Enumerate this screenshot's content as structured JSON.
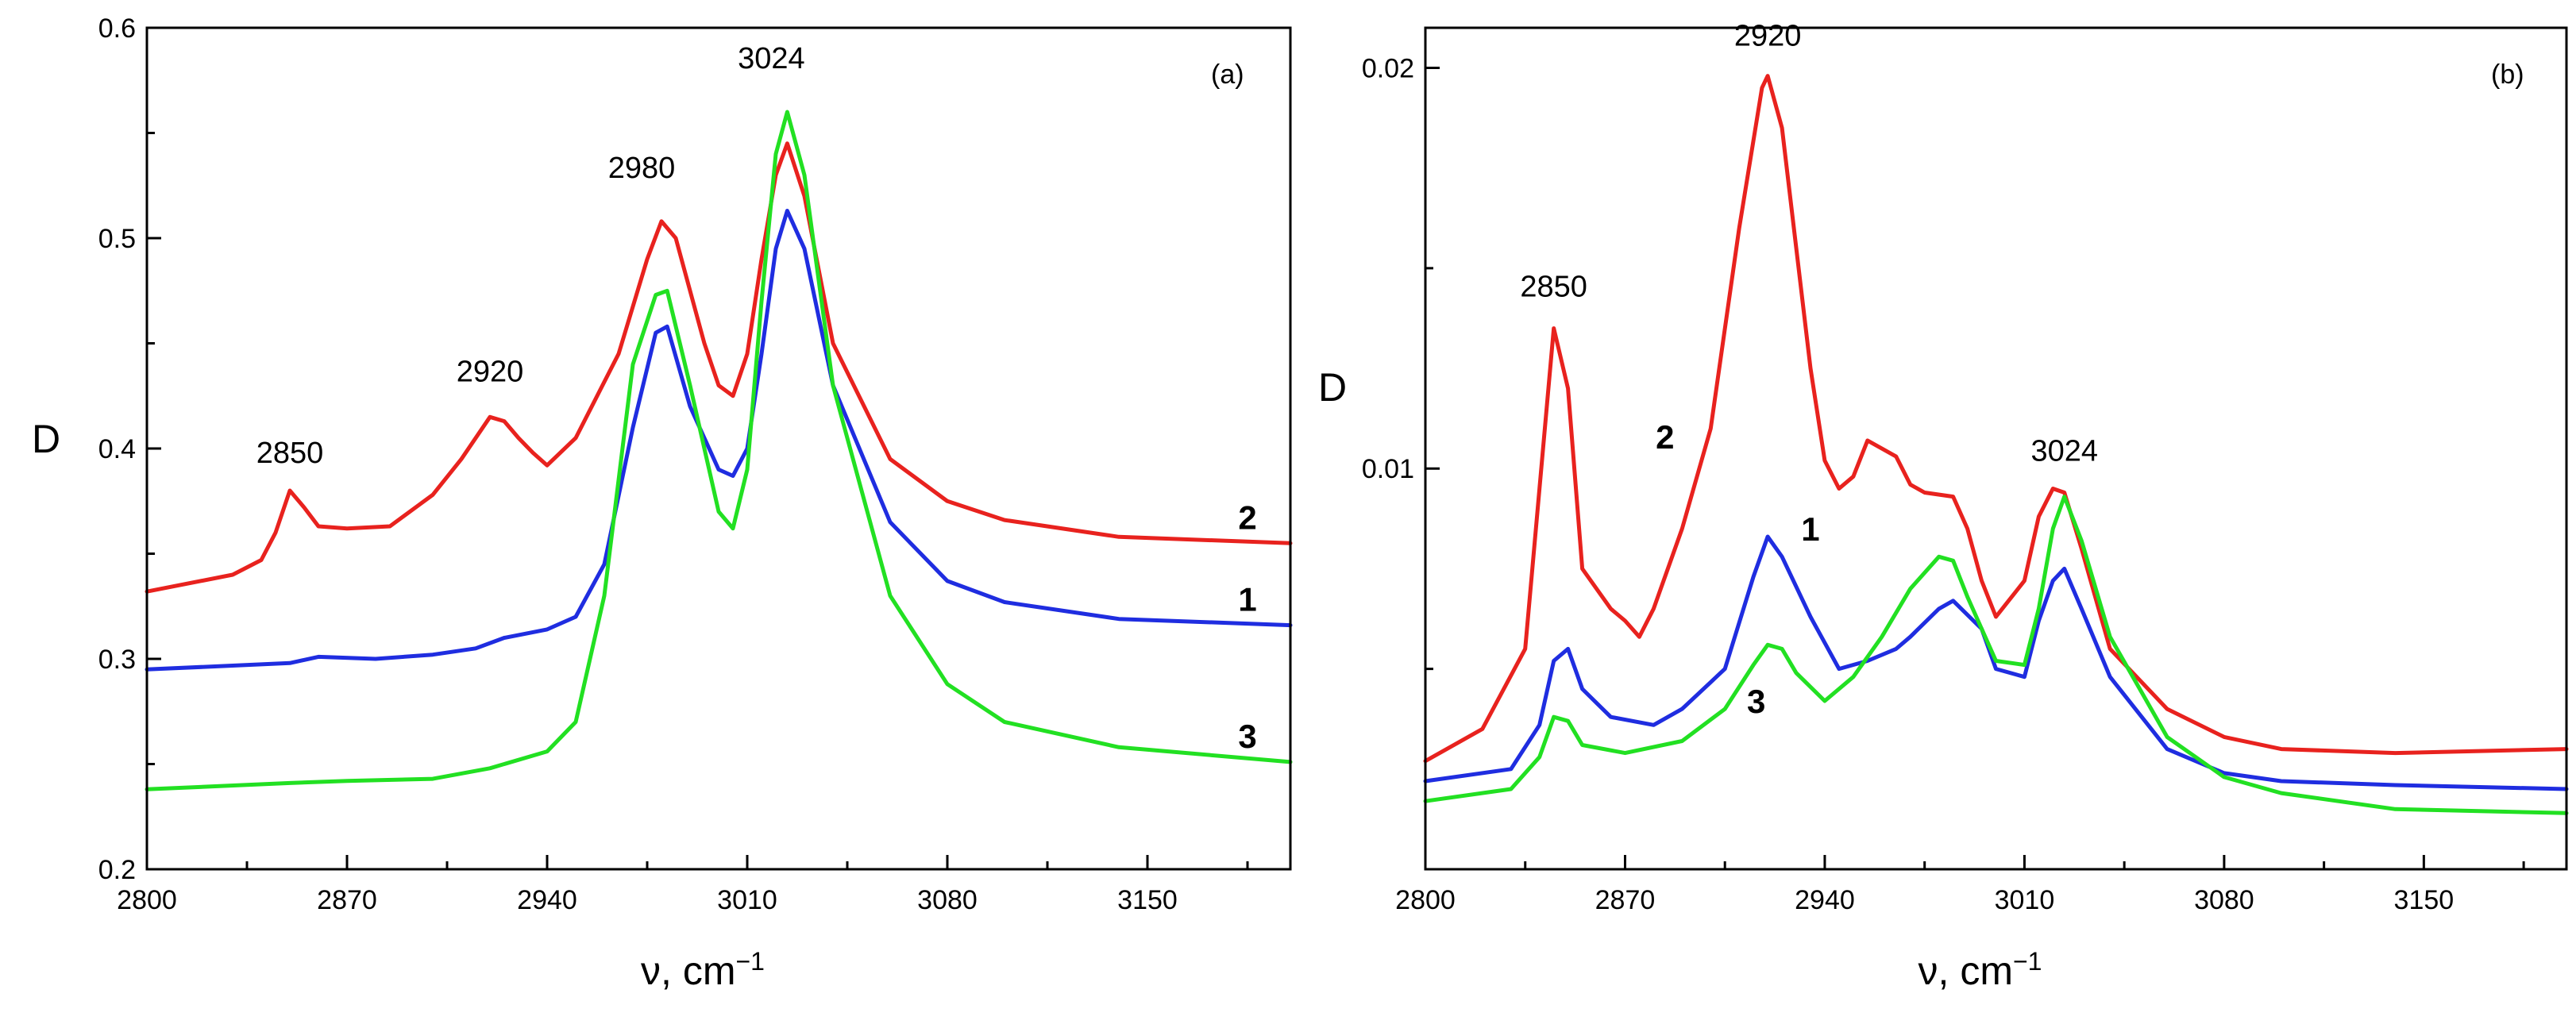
{
  "chart_data": [
    {
      "type": "line",
      "panel_label": "(a)",
      "xlabel": "ν, cm",
      "xlabel_sup": "−1",
      "ylabel": "D",
      "xlim": [
        2800,
        3200
      ],
      "ylim": [
        0.2,
        0.6
      ],
      "x_ticks": [
        2800,
        2870,
        2940,
        3010,
        3080,
        3150
      ],
      "x_tick_labels": [
        "2800",
        "2870",
        "2940",
        "3010",
        "3080",
        "3150"
      ],
      "y_ticks": [
        0.2,
        0.3,
        0.4,
        0.5,
        0.6
      ],
      "y_tick_labels": [
        "0.2",
        "0.3",
        "0.4",
        "0.5",
        "0.6"
      ],
      "grid": false,
      "series": [
        {
          "name": "2",
          "color": "#e8221e",
          "x": [
            2800,
            2830,
            2840,
            2845,
            2850,
            2855,
            2860,
            2870,
            2885,
            2900,
            2910,
            2920,
            2925,
            2930,
            2935,
            2940,
            2950,
            2965,
            2975,
            2980,
            2985,
            2995,
            3000,
            3005,
            3010,
            3015,
            3020,
            3024,
            3030,
            3040,
            3060,
            3080,
            3100,
            3140,
            3200
          ],
          "y": [
            0.332,
            0.34,
            0.347,
            0.36,
            0.38,
            0.372,
            0.363,
            0.362,
            0.363,
            0.378,
            0.395,
            0.415,
            0.413,
            0.405,
            0.398,
            0.392,
            0.405,
            0.445,
            0.49,
            0.508,
            0.5,
            0.45,
            0.43,
            0.425,
            0.445,
            0.49,
            0.53,
            0.545,
            0.52,
            0.45,
            0.395,
            0.375,
            0.366,
            0.358,
            0.355
          ]
        },
        {
          "name": "1",
          "color": "#1f2de0",
          "x": [
            2800,
            2850,
            2860,
            2880,
            2900,
            2915,
            2925,
            2940,
            2950,
            2960,
            2970,
            2978,
            2982,
            2990,
            3000,
            3005,
            3010,
            3015,
            3020,
            3024,
            3030,
            3040,
            3060,
            3080,
            3100,
            3140,
            3200
          ],
          "y": [
            0.295,
            0.298,
            0.301,
            0.3,
            0.302,
            0.305,
            0.31,
            0.314,
            0.32,
            0.345,
            0.41,
            0.455,
            0.458,
            0.42,
            0.39,
            0.387,
            0.4,
            0.445,
            0.495,
            0.513,
            0.495,
            0.43,
            0.365,
            0.337,
            0.327,
            0.319,
            0.316
          ]
        },
        {
          "name": "3",
          "color": "#22e022",
          "x": [
            2800,
            2850,
            2870,
            2900,
            2920,
            2940,
            2950,
            2960,
            2970,
            2978,
            2982,
            2990,
            3000,
            3005,
            3010,
            3015,
            3020,
            3024,
            3030,
            3040,
            3060,
            3080,
            3100,
            3140,
            3200
          ],
          "y": [
            0.238,
            0.241,
            0.242,
            0.243,
            0.248,
            0.256,
            0.27,
            0.33,
            0.44,
            0.473,
            0.475,
            0.43,
            0.37,
            0.362,
            0.39,
            0.47,
            0.54,
            0.56,
            0.53,
            0.43,
            0.33,
            0.288,
            0.27,
            0.258,
            0.251
          ]
        }
      ],
      "peak_annotations": [
        {
          "text": "2850",
          "x": 2850,
          "y": 0.38
        },
        {
          "text": "2920",
          "x": 2920,
          "y": 0.415
        },
        {
          "text": "2980",
          "x": 2980,
          "y": 0.508
        },
        {
          "text": "3024",
          "x": 3024,
          "y": 0.56
        }
      ],
      "curve_labels": [
        {
          "text": "2",
          "x": 3185,
          "y": 0.355
        },
        {
          "text": "1",
          "x": 3185,
          "y": 0.316
        },
        {
          "text": "3",
          "x": 3185,
          "y": 0.251
        }
      ]
    },
    {
      "type": "line",
      "panel_label": "(b)",
      "xlabel": "ν, cm",
      "xlabel_sup": "−1",
      "ylabel": "D",
      "xlim": [
        2800,
        3200
      ],
      "ylim": [
        0.0,
        0.021
      ],
      "x_ticks": [
        2800,
        2870,
        2940,
        3010,
        3080,
        3150
      ],
      "x_tick_labels": [
        "2800",
        "2870",
        "2940",
        "3010",
        "3080",
        "3150"
      ],
      "y_ticks": [
        0.01,
        0.02
      ],
      "y_tick_labels": [
        "0.01",
        "0.02"
      ],
      "grid": false,
      "series": [
        {
          "name": "2",
          "color": "#e8221e",
          "x": [
            2800,
            2820,
            2835,
            2840,
            2845,
            2850,
            2855,
            2865,
            2870,
            2875,
            2880,
            2890,
            2900,
            2910,
            2918,
            2920,
            2925,
            2935,
            2940,
            2945,
            2950,
            2955,
            2965,
            2970,
            2975,
            2985,
            2990,
            2995,
            3000,
            3010,
            3015,
            3020,
            3024,
            3030,
            3040,
            3060,
            3080,
            3100,
            3140,
            3200
          ],
          "y": [
            0.0027,
            0.0035,
            0.0055,
            0.0095,
            0.0135,
            0.012,
            0.0075,
            0.0065,
            0.0062,
            0.0058,
            0.0065,
            0.0085,
            0.011,
            0.016,
            0.0195,
            0.0198,
            0.0185,
            0.0125,
            0.0102,
            0.0095,
            0.0098,
            0.0107,
            0.0103,
            0.0096,
            0.0094,
            0.0093,
            0.0085,
            0.0072,
            0.0063,
            0.0072,
            0.0088,
            0.0095,
            0.0094,
            0.008,
            0.0055,
            0.004,
            0.0033,
            0.003,
            0.0029,
            0.003
          ]
        },
        {
          "name": "1",
          "color": "#1f2de0",
          "x": [
            2800,
            2830,
            2840,
            2845,
            2850,
            2855,
            2865,
            2880,
            2890,
            2905,
            2915,
            2920,
            2925,
            2935,
            2945,
            2955,
            2965,
            2970,
            2980,
            2985,
            2995,
            3000,
            3010,
            3015,
            3020,
            3024,
            3030,
            3040,
            3060,
            3080,
            3100,
            3140,
            3200
          ],
          "y": [
            0.0022,
            0.0025,
            0.0036,
            0.0052,
            0.0055,
            0.0045,
            0.0038,
            0.0036,
            0.004,
            0.005,
            0.0073,
            0.0083,
            0.0078,
            0.0063,
            0.005,
            0.0052,
            0.0055,
            0.0058,
            0.0065,
            0.0067,
            0.006,
            0.005,
            0.0048,
            0.0062,
            0.0072,
            0.0075,
            0.0065,
            0.0048,
            0.003,
            0.0024,
            0.0022,
            0.0021,
            0.002
          ]
        },
        {
          "name": "3",
          "color": "#22e022",
          "x": [
            2800,
            2830,
            2840,
            2845,
            2850,
            2855,
            2870,
            2890,
            2905,
            2915,
            2920,
            2925,
            2930,
            2940,
            2950,
            2960,
            2970,
            2980,
            2985,
            2990,
            3000,
            3010,
            3015,
            3020,
            3024,
            3030,
            3040,
            3060,
            3080,
            3100,
            3140,
            3200
          ],
          "y": [
            0.0017,
            0.002,
            0.0028,
            0.0038,
            0.0037,
            0.0031,
            0.0029,
            0.0032,
            0.004,
            0.0051,
            0.0056,
            0.0055,
            0.0049,
            0.0042,
            0.0048,
            0.0058,
            0.007,
            0.0078,
            0.0077,
            0.0068,
            0.0052,
            0.0051,
            0.0065,
            0.0085,
            0.0093,
            0.0082,
            0.0058,
            0.0033,
            0.0023,
            0.0019,
            0.0015,
            0.0014
          ]
        }
      ],
      "peak_annotations": [
        {
          "text": "2850",
          "x": 2845,
          "y": 0.0135
        },
        {
          "text": "2920",
          "x": 2920,
          "y": 0.0198
        },
        {
          "text": "3024",
          "x": 3024,
          "y": 0.0095
        }
      ],
      "curve_labels": [
        {
          "text": "2",
          "x": 2884,
          "y": 0.0105
        },
        {
          "text": "1",
          "x": 2935,
          "y": 0.0082
        },
        {
          "text": "3",
          "x": 2916,
          "y": 0.0039
        }
      ]
    }
  ]
}
